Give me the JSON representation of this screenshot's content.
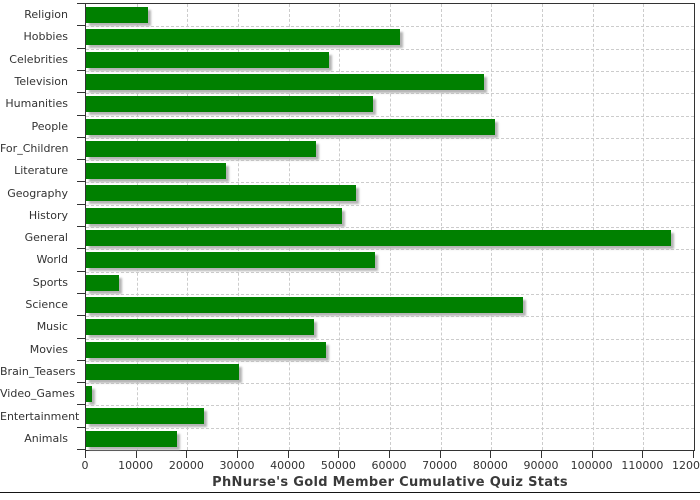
{
  "chart_data": {
    "type": "bar",
    "orientation": "horizontal",
    "title": "PhNurse's Gold Member Cumulative Quiz Stats",
    "categories": [
      "Religion",
      "Hobbies",
      "Celebrities",
      "Television",
      "Humanities",
      "People",
      "For_Children",
      "Literature",
      "Geography",
      "History",
      "General",
      "World",
      "Sports",
      "Science",
      "Music",
      "Movies",
      "Brain_Teasers",
      "Video_Games",
      "Entertainment",
      "Animals"
    ],
    "values": [
      12200,
      62000,
      48000,
      78500,
      56700,
      80700,
      45400,
      27600,
      53300,
      50500,
      115400,
      57100,
      6600,
      86300,
      45000,
      47300,
      30200,
      1200,
      23200,
      17900
    ],
    "xlabel": "",
    "ylabel": "",
    "xlim": [
      0,
      120000
    ],
    "x_tick_interval": 10000,
    "x_tick_labels": [
      "0",
      "10000",
      "20000",
      "30000",
      "40000",
      "50000",
      "60000",
      "70000",
      "80000",
      "90000",
      "100000",
      "110000",
      "120000"
    ],
    "grid": true,
    "legend": "none",
    "colors": {
      "bar": "#008000",
      "bar_shadow": "#b4b4b4",
      "grid": "#cccccc",
      "axis": "#333333",
      "text": "#333333",
      "title": "#3a3a3a"
    }
  }
}
